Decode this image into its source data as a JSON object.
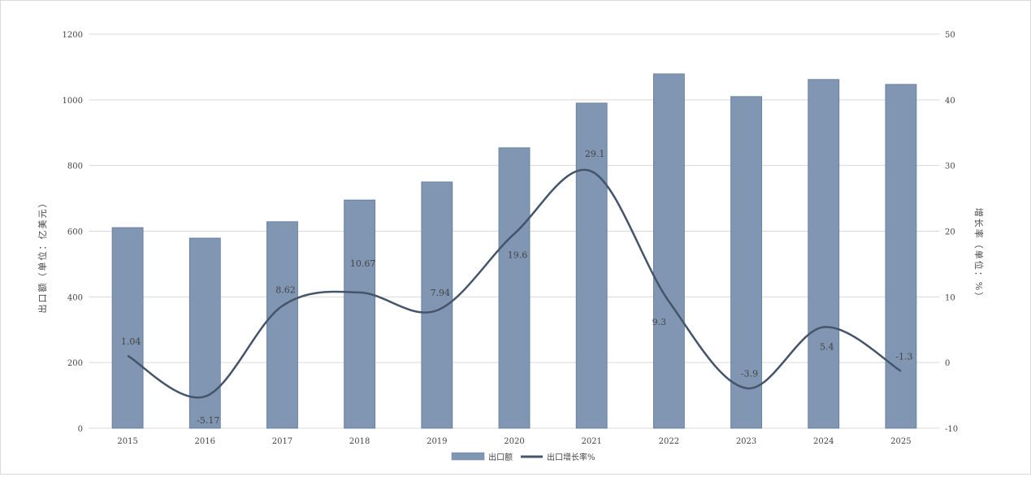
{
  "chart_data": {
    "type": "bar+line",
    "categories": [
      "2015",
      "2016",
      "2017",
      "2018",
      "2019",
      "2020",
      "2021",
      "2022",
      "2023",
      "2024",
      "2025"
    ],
    "series": [
      {
        "name": "出口额",
        "type": "bar",
        "axis": "left",
        "color": "#8096b3",
        "values": [
          611,
          579,
          629,
          695,
          750,
          854,
          990,
          1079,
          1010,
          1062,
          1047
        ]
      },
      {
        "name": "出口增长率%",
        "type": "line",
        "axis": "right",
        "color": "#44546a",
        "smooth": true,
        "values": [
          1.04,
          -5.17,
          8.62,
          10.67,
          7.94,
          19.6,
          29.1,
          9.3,
          -3.9,
          5.4,
          -1.3
        ],
        "labels": [
          "1.04",
          "-5.17",
          "8.62",
          "10.67",
          "7.94",
          "19.6",
          "29.1",
          "9.3",
          "-3.9",
          "5.4",
          "-1.3"
        ]
      }
    ],
    "ylabel": "出口额（单位：亿美元）",
    "y2label": "增长率（单位：%）",
    "ylim": [
      0,
      1200
    ],
    "yticks": [
      0,
      200,
      400,
      600,
      800,
      1000,
      1200
    ],
    "y2lim": [
      -10,
      50
    ],
    "y2ticks": [
      -10,
      0,
      10,
      20,
      30,
      40,
      50
    ],
    "grid": true,
    "legend": "bottom-center"
  }
}
